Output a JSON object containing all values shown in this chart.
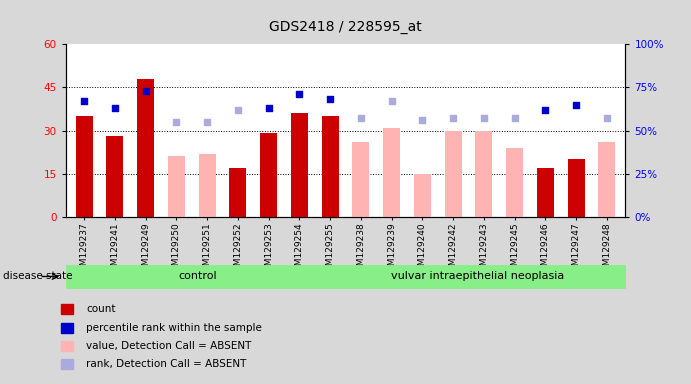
{
  "title": "GDS2418 / 228595_at",
  "samples": [
    "GSM129237",
    "GSM129241",
    "GSM129249",
    "GSM129250",
    "GSM129251",
    "GSM129252",
    "GSM129253",
    "GSM129254",
    "GSM129255",
    "GSM129238",
    "GSM129239",
    "GSM129240",
    "GSM129242",
    "GSM129243",
    "GSM129245",
    "GSM129246",
    "GSM129247",
    "GSM129248"
  ],
  "count_values": [
    35,
    28,
    48,
    null,
    null,
    17,
    29,
    36,
    35,
    null,
    null,
    null,
    null,
    null,
    null,
    17,
    20,
    null
  ],
  "absent_values": [
    null,
    null,
    null,
    21,
    22,
    null,
    null,
    null,
    null,
    26,
    31,
    15,
    30,
    30,
    24,
    null,
    null,
    26
  ],
  "rank_present": [
    67,
    63,
    73,
    null,
    null,
    null,
    63,
    71,
    68,
    null,
    null,
    null,
    null,
    null,
    null,
    62,
    65,
    null
  ],
  "rank_absent": [
    null,
    null,
    null,
    55,
    55,
    62,
    null,
    null,
    null,
    57,
    67,
    56,
    57,
    57,
    57,
    null,
    null,
    57
  ],
  "group_labels": [
    "control",
    "vulvar intraepithelial neoplasia"
  ],
  "ctrl_count": 9,
  "vin_count": 9,
  "ylim_left": [
    0,
    60
  ],
  "ylim_right": [
    0,
    100
  ],
  "yticks_left": [
    0,
    15,
    30,
    45,
    60
  ],
  "yticks_right": [
    0,
    25,
    50,
    75,
    100
  ],
  "bar_color_present": "#cc0000",
  "bar_color_absent": "#ffb3b3",
  "dot_color_present": "#0000cc",
  "dot_color_absent": "#aaaadd",
  "bg_color": "#d8d8d8",
  "plot_bg": "#ffffff",
  "group_bg": "#88ee88",
  "bar_width": 0.55,
  "leg_labels": [
    "count",
    "percentile rank within the sample",
    "value, Detection Call = ABSENT",
    "rank, Detection Call = ABSENT"
  ]
}
